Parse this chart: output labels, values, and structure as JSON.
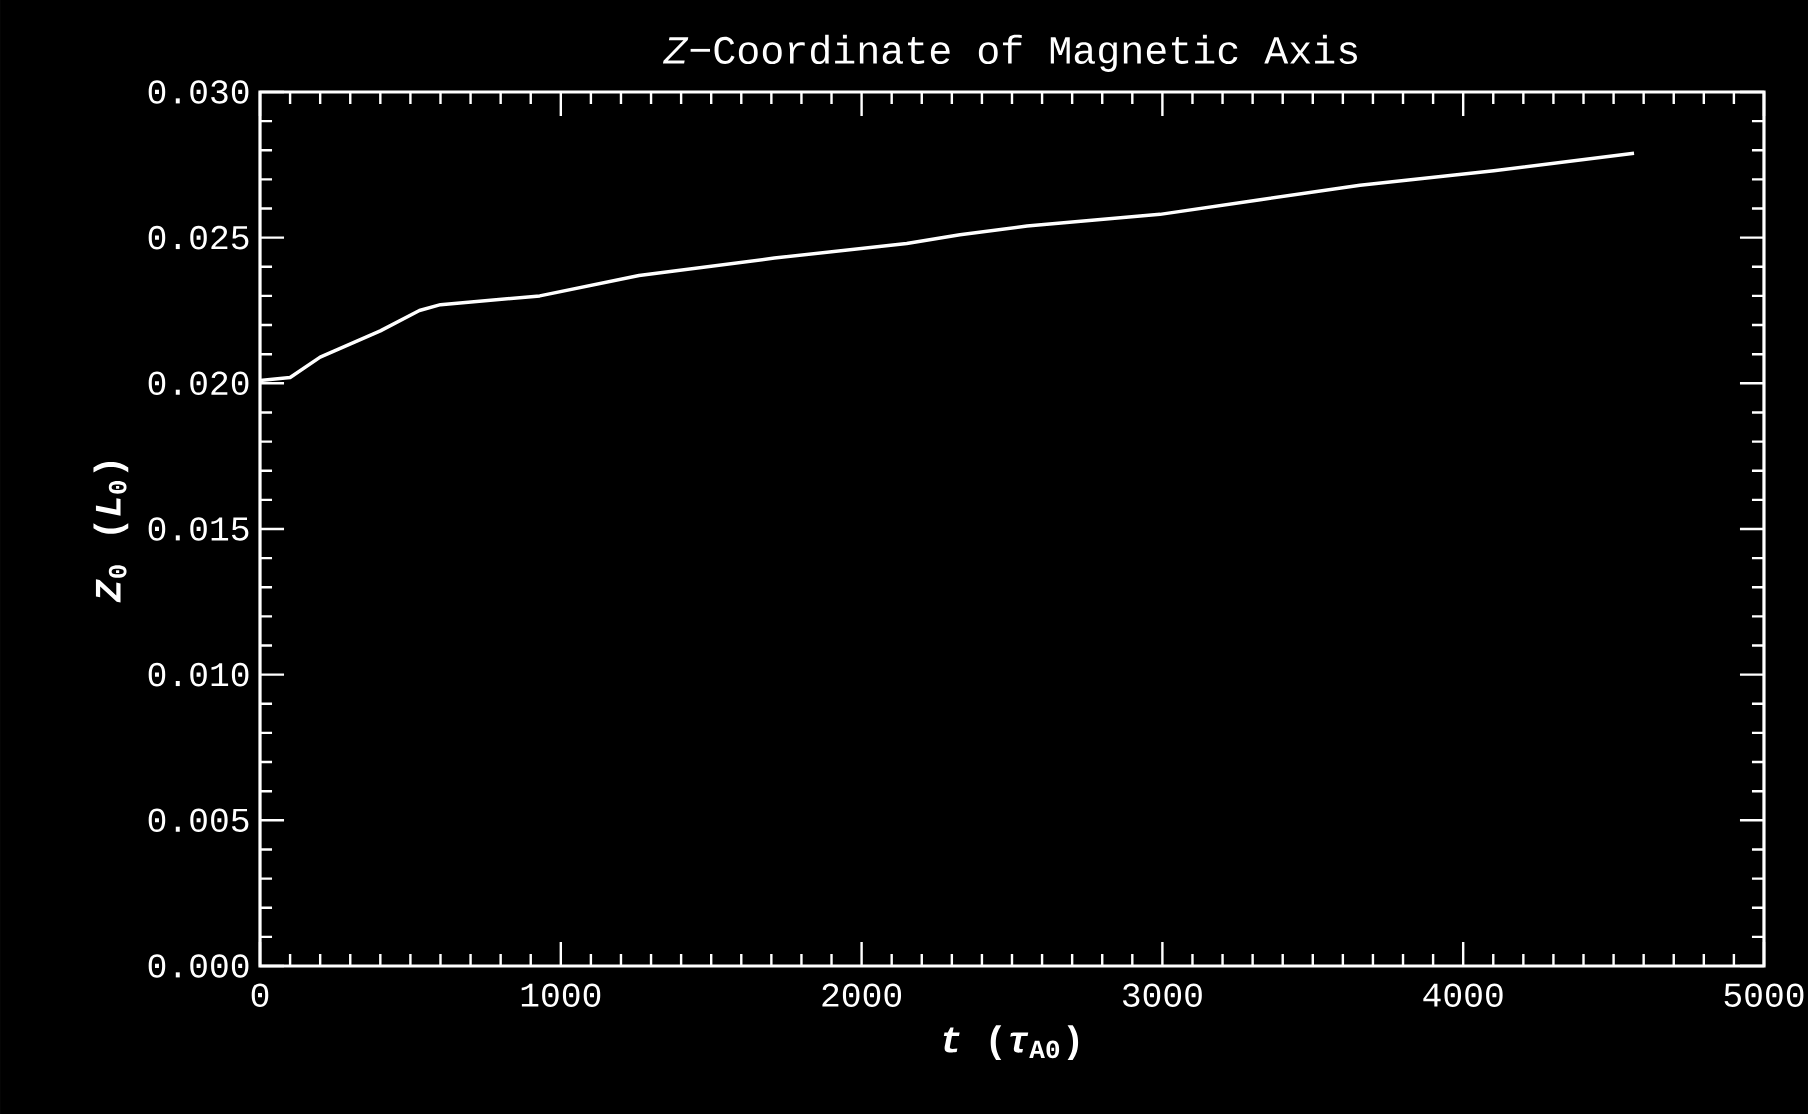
{
  "chart_data": {
    "type": "line",
    "title": "*Z*−Coordinate of Magnetic Axis",
    "xlabel": "*t* (*τ*$_{A0}$)",
    "ylabel": "*Z*$_{0}$ (*L*$_{0}$)",
    "x": [
      0,
      100,
      200,
      400,
      530,
      600,
      930,
      1260,
      1710,
      2150,
      2327,
      2550,
      2992,
      3325,
      3657,
      4102,
      4568
    ],
    "series": [
      {
        "color": "#ffffff",
        "values": [
          0.0201,
          0.0202,
          0.0209,
          0.0218,
          0.0225,
          0.0227,
          0.023,
          0.0237,
          0.0243,
          0.0248,
          0.0251,
          0.0254,
          0.0258,
          0.0263,
          0.0268,
          0.0273,
          0.0279
        ]
      }
    ],
    "xlim": [
      0,
      5000
    ],
    "xticks": [
      0,
      1000,
      2000,
      3000,
      4000,
      5000
    ],
    "ylim": [
      0,
      0.03
    ],
    "yticks": [
      {
        "value": 0,
        "label": "0.000"
      },
      {
        "value": 0.005,
        "label": "0.005"
      },
      {
        "value": 0.01,
        "label": "0.010"
      },
      {
        "value": 0.015,
        "label": "0.015"
      },
      {
        "value": 0.02,
        "label": "0.020"
      },
      {
        "value": 0.025,
        "label": "0.025"
      },
      {
        "value": 0.03,
        "label": "0.030"
      }
    ],
    "grid": false,
    "marker": "none",
    "line_style": "solid"
  }
}
